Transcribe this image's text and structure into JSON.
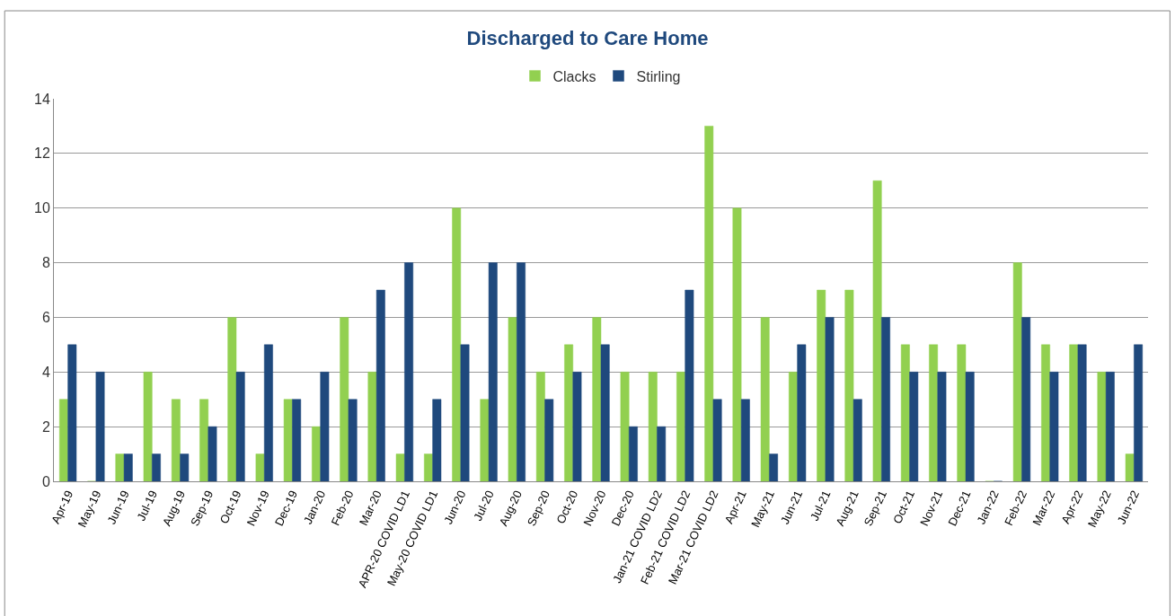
{
  "chart_data": {
    "type": "bar",
    "title": "Discharged to Care Home",
    "categories": [
      "Apr-19",
      "May-19",
      "Jun-19",
      "Jul-19",
      "Aug-19",
      "Sep-19",
      "Oct-19",
      "Nov-19",
      "Dec-19",
      "Jan-20",
      "Feb-20",
      "Mar-20",
      "APR-20 COVID LD1",
      "May-20 COVID LD1",
      "Jun-20",
      "Jul-20",
      "Aug-20",
      "Sep-20",
      "Oct-20",
      "Nov-20",
      "Dec-20",
      "Jan-21 COVID LD2",
      "Feb-21 COVID LD2",
      "Mar-21 COVID LD2",
      "Apr-21",
      "May-21",
      "Jun-21",
      "Jul-21",
      "Aug-21",
      "Sep-21",
      "Oct-21",
      "Nov-21",
      "Dec-21",
      "Jan-22",
      "Feb-22",
      "Mar-22",
      "Apr-22",
      "May-22",
      "Jun-22"
    ],
    "series": [
      {
        "name": "Clacks",
        "color": "#92d050",
        "values": [
          3,
          0,
          1,
          4,
          3,
          3,
          6,
          1,
          3,
          2,
          6,
          4,
          1,
          1,
          10,
          3,
          6,
          4,
          5,
          6,
          4,
          4,
          4,
          13,
          10,
          6,
          4,
          7,
          7,
          11,
          5,
          5,
          5,
          0,
          8,
          5,
          5,
          4,
          1
        ]
      },
      {
        "name": "Stirling",
        "color": "#1f497d",
        "values": [
          5,
          4,
          1,
          1,
          1,
          2,
          4,
          5,
          3,
          4,
          3,
          7,
          8,
          3,
          5,
          8,
          8,
          3,
          4,
          5,
          2,
          2,
          7,
          3,
          3,
          1,
          5,
          6,
          3,
          6,
          4,
          4,
          4,
          0,
          6,
          4,
          5,
          4,
          5
        ]
      }
    ],
    "ylim": [
      0,
      14
    ],
    "yticks": [
      0,
      2,
      4,
      6,
      8,
      10,
      12,
      14
    ],
    "grid": "y",
    "legend": "top"
  }
}
